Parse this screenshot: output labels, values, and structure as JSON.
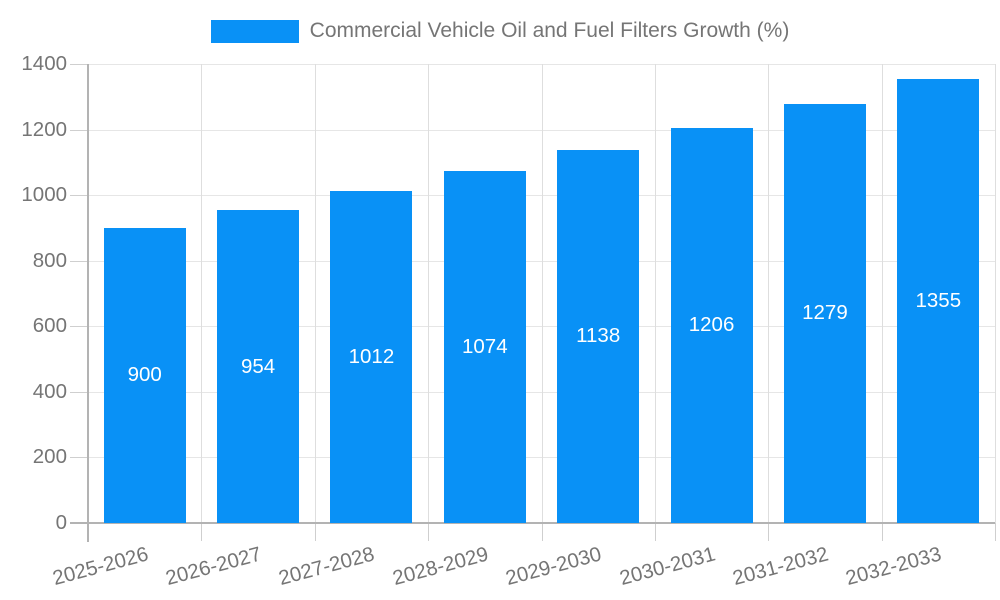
{
  "chart_data": {
    "type": "bar",
    "title": "Commercial Vehicle Oil and Fuel Filters Growth (%)",
    "categories": [
      "2025-2026",
      "2026-2027",
      "2027-2028",
      "2028-2029",
      "2029-2030",
      "2030-2031",
      "2031-2032",
      "2032-2033"
    ],
    "series": [
      {
        "name": "Commercial Vehicle Oil and Fuel Filters Growth (%)",
        "values": [
          900,
          954,
          1012,
          1074,
          1138,
          1206,
          1279,
          1355
        ]
      }
    ],
    "value_labels_visible": true,
    "xlabel": "",
    "ylabel": "",
    "ylim": [
      0,
      1400
    ],
    "yticks": [
      0,
      200,
      400,
      600,
      800,
      1000,
      1200,
      1400
    ],
    "grid": true,
    "legend_position": "top-center",
    "x_label_rotation_deg": -15,
    "colors": {
      "bar": "#0991f6",
      "value_label": "#ffffff",
      "axis_text": "#757575",
      "grid_horizontal": "#e6e6e6",
      "grid_vertical": "#dedede",
      "tick": "#cfcfcf",
      "axis_line": "#b3b3b3",
      "background": "#ffffff"
    }
  }
}
